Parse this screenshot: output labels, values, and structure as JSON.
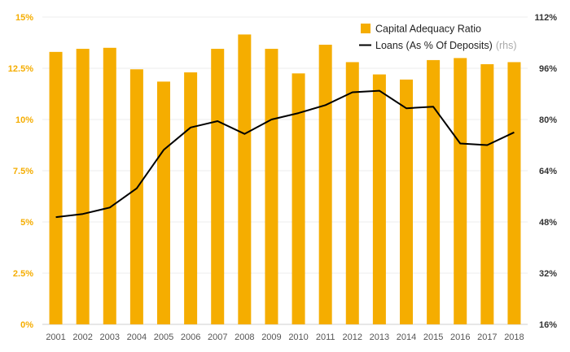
{
  "chart_data": {
    "type": "bar",
    "categories": [
      "2001",
      "2002",
      "2003",
      "2004",
      "2005",
      "2006",
      "2007",
      "2008",
      "2009",
      "2010",
      "2011",
      "2012",
      "2013",
      "2014",
      "2015",
      "2016",
      "2017",
      "2018"
    ],
    "series": [
      {
        "name": "Capital Adequacy Ratio",
        "type": "bar",
        "axis": "left",
        "color": "#F5AD00",
        "values": [
          13.3,
          13.45,
          13.5,
          12.45,
          11.85,
          12.3,
          13.45,
          14.15,
          13.45,
          12.25,
          13.65,
          12.8,
          12.2,
          11.95,
          12.9,
          13.0,
          12.7,
          12.8
        ]
      },
      {
        "name": "Loans (As % Of Deposits)",
        "name_suffix": "(rhs)",
        "type": "line",
        "axis": "right",
        "color": "#000000",
        "values": [
          49.5,
          50.5,
          52.5,
          58.5,
          70.5,
          77.5,
          79.5,
          75.5,
          80.0,
          82.0,
          84.5,
          88.5,
          89.0,
          83.5,
          84.0,
          72.5,
          72.0,
          76.0
        ]
      }
    ],
    "y_left": {
      "ticks": [
        "0%",
        "2.5%",
        "5%",
        "7.5%",
        "10%",
        "12.5%",
        "15%"
      ],
      "ylim": [
        0,
        15
      ]
    },
    "y_right": {
      "ticks": [
        "16%",
        "32%",
        "48%",
        "64%",
        "80%",
        "96%",
        "112%"
      ],
      "ylim": [
        16,
        112
      ]
    },
    "grid": true,
    "legend_position": "top-right"
  }
}
